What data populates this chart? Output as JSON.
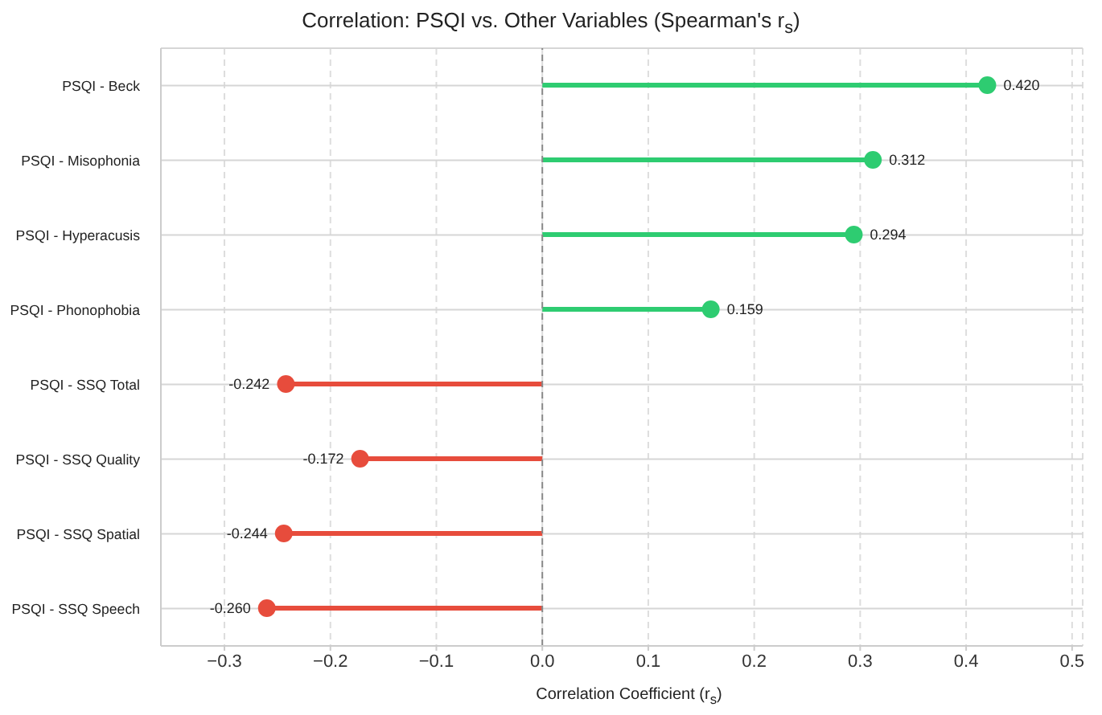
{
  "chart_data": {
    "type": "lollipop",
    "orientation": "horizontal",
    "title": "Correlation: PSQI vs. Other Variables (Spearman's r$_{s}$)",
    "xlabel": "Correlation Coefficient (r$_{s}$)",
    "categories": [
      "PSQI - Beck",
      "PSQI - Misophonia",
      "PSQI - Hyperacusis",
      "PSQI - Phonophobia",
      "PSQI - SSQ Total",
      "PSQI - SSQ Quality",
      "PSQI - SSQ Spatial",
      "PSQI - SSQ Speech"
    ],
    "values": [
      0.42,
      0.312,
      0.294,
      0.159,
      -0.242,
      -0.172,
      -0.244,
      -0.26
    ],
    "value_labels": [
      "0.420",
      "0.312",
      "0.294",
      "0.159",
      "-0.242",
      "-0.172",
      "-0.244",
      "-0.260"
    ],
    "colors": [
      "#2ecc71",
      "#2ecc71",
      "#2ecc71",
      "#2ecc71",
      "#e74c3c",
      "#e74c3c",
      "#e74c3c",
      "#e74c3c"
    ],
    "xlim": [
      -0.36,
      0.51
    ],
    "xticks": [
      {
        "value": -0.3,
        "label": "−0.3"
      },
      {
        "value": -0.2,
        "label": "−0.2"
      },
      {
        "value": -0.1,
        "label": "−0.1"
      },
      {
        "value": 0,
        "label": "0.0"
      },
      {
        "value": 0.1,
        "label": "0.1"
      },
      {
        "value": 0.2,
        "label": "0.2"
      },
      {
        "value": 0.3,
        "label": "0.3"
      },
      {
        "value": 0.4,
        "label": "0.4"
      },
      {
        "value": 0.5,
        "label": "0.5"
      }
    ],
    "ref_lines": [
      {
        "axis": "x",
        "value": 0,
        "color": "#888888",
        "line_style": "dashed"
      }
    ],
    "grid": true,
    "marker": "circle"
  }
}
